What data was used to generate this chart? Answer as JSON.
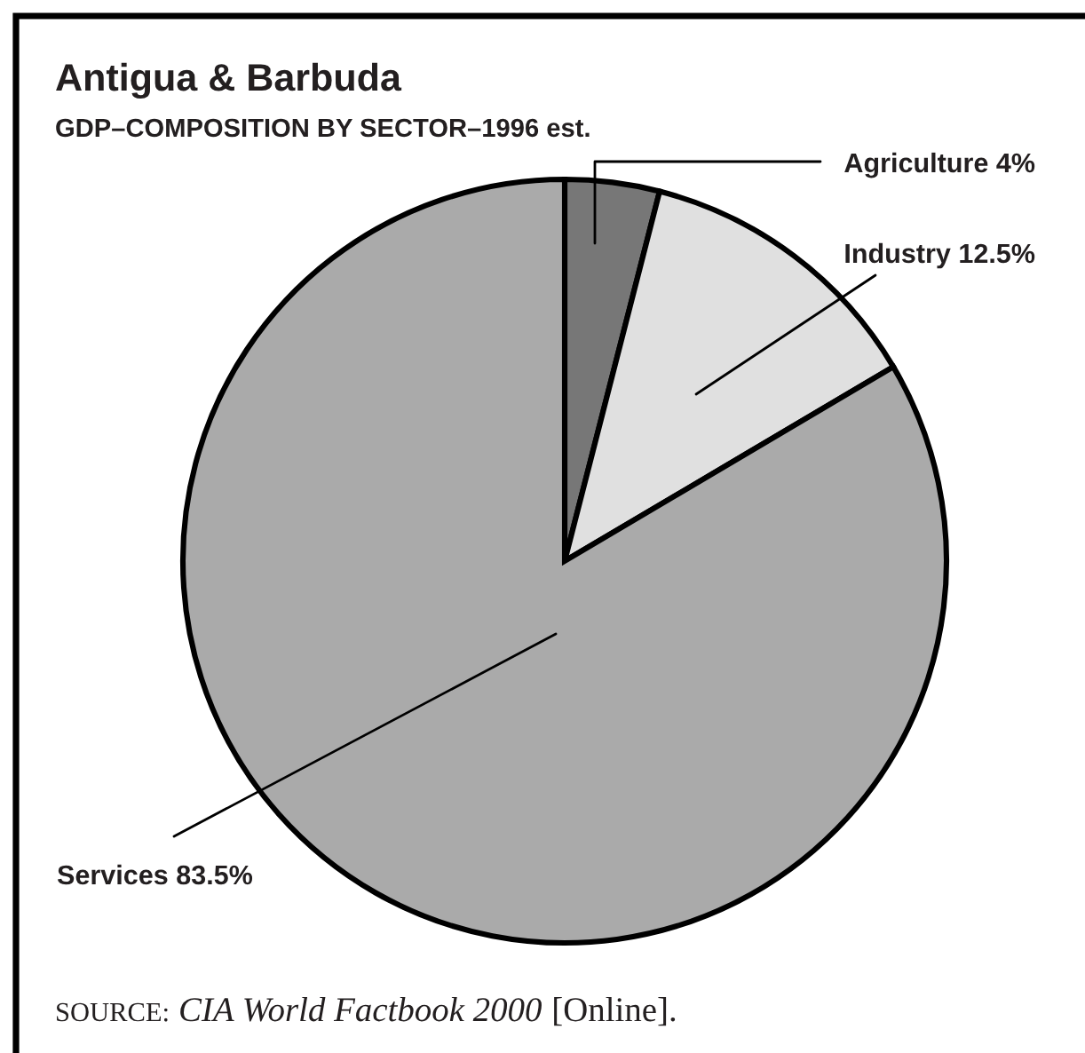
{
  "chart_data": {
    "type": "pie",
    "title": "Antigua & Barbuda",
    "subtitle": "GDP–COMPOSITION BY SECTOR–1996 est.",
    "categories": [
      "Agriculture",
      "Industry",
      "Services"
    ],
    "values": [
      4,
      12.5,
      83.5
    ],
    "value_labels": [
      "4%",
      "12.5%",
      "83.5%"
    ],
    "colors": [
      "#777777",
      "#e0e0e0",
      "#aaaaaa"
    ],
    "annotations": [
      "SOURCE:",
      "CIA World Factbook 2000",
      "[Online]."
    ]
  }
}
